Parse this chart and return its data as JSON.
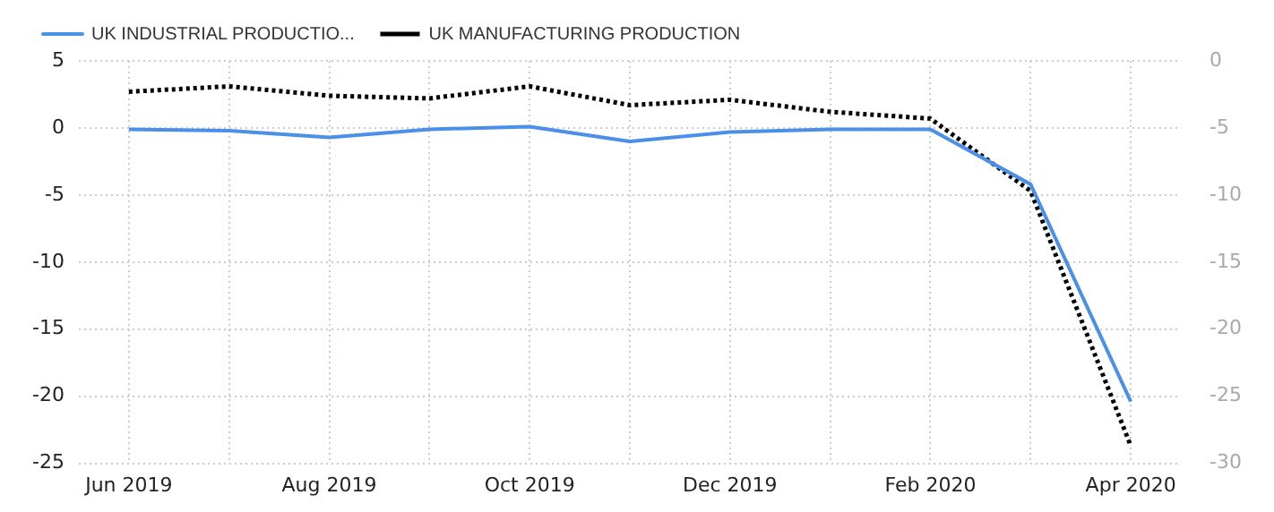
{
  "chart_data": {
    "type": "line",
    "categories": [
      "Jun 2019",
      null,
      "Aug 2019",
      null,
      "Oct 2019",
      null,
      "Dec 2019",
      null,
      "Feb 2020",
      null,
      "Apr 2020"
    ],
    "series": [
      {
        "name": "UK INDUSTRIAL PRODUCTIO...",
        "color": "#4a8fe8",
        "line_style": "solid",
        "values": [
          -0.1,
          -0.2,
          -0.7,
          -0.1,
          0.1,
          -1.0,
          -0.3,
          -0.1,
          -0.1,
          -4.2,
          -20.4
        ]
      },
      {
        "name": "UK MANUFACTURING PRODUCTION",
        "color": "#000000",
        "line_style": "dotted",
        "axis": "y2",
        "values": [
          -2.3,
          -1.9,
          -2.6,
          -2.8,
          -1.9,
          -3.3,
          -2.9,
          -3.8,
          -4.3,
          -9.7,
          -28.7
        ]
      }
    ],
    "ylim": [
      -25,
      5
    ],
    "yticks": [
      5,
      0,
      -5,
      -10,
      -15,
      -20,
      -25
    ],
    "y2lim": [
      -30,
      0
    ],
    "y2ticks": [
      0,
      -5,
      -10,
      -15,
      -20,
      -25,
      -30
    ],
    "grid": true,
    "legend": "top left",
    "marker": "none"
  }
}
